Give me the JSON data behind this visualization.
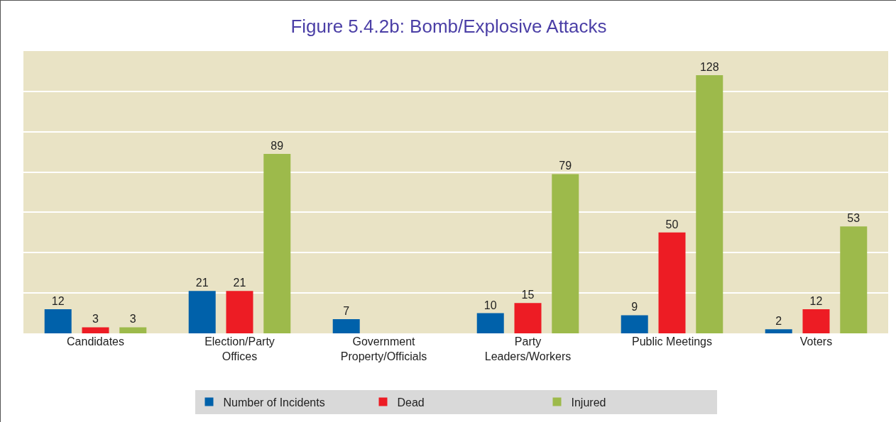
{
  "chart_data": {
    "type": "bar",
    "title": "Figure 5.4.2b: Bomb/Explosive Attacks",
    "categories": [
      "Candidates",
      "Election/Party Offices",
      "Government Property/Officials",
      "Party Leaders/Workers",
      "Public Meetings",
      "Voters"
    ],
    "series": [
      {
        "name": "Number of Incidents",
        "color": "#0061aa",
        "values": [
          12,
          21,
          7,
          10,
          9,
          2
        ]
      },
      {
        "name": "Dead",
        "color": "#ed1c24",
        "values": [
          3,
          21,
          null,
          15,
          50,
          12
        ]
      },
      {
        "name": "Injured",
        "color": "#9dba4b",
        "values": [
          3,
          89,
          null,
          79,
          128,
          53
        ]
      }
    ],
    "ylim": [
      0,
      140
    ],
    "yticks": [
      {
        "value": 0,
        "label": null
      },
      {
        "value": 20,
        "label": null
      },
      {
        "value": 40,
        "label": null
      },
      {
        "value": 60,
        "label": null
      },
      {
        "value": 80,
        "label": null
      },
      {
        "value": 100,
        "label": null
      },
      {
        "value": 120,
        "label": null
      },
      {
        "value": 140,
        "label": null
      }
    ],
    "grid": "y",
    "tick_labels": "x",
    "data_labels": true,
    "legend": "bottom"
  }
}
